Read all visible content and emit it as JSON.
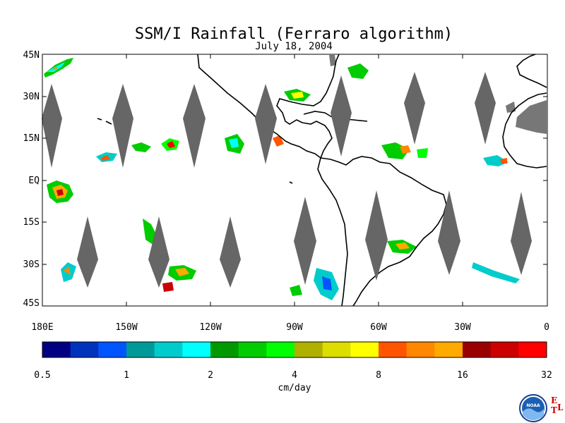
{
  "title": "SSM/I Rainfall (Ferraro algorithm)",
  "subtitle": "July 18, 2004",
  "lat_labels": [
    "45N",
    "30N",
    "15N",
    "EQ",
    "15S",
    "30S",
    "45S"
  ],
  "lon_labels": [
    "180E",
    "150W",
    "120W",
    "90W",
    "60W",
    "30W",
    "0"
  ],
  "colorbar": {
    "unit": "cm/day",
    "tick_labels": [
      "0.5",
      "1",
      "2",
      "4",
      "8",
      "16",
      "32"
    ],
    "colors": [
      "#000080",
      "#0033bb",
      "#0055ff",
      "#009999",
      "#00cccc",
      "#00ffff",
      "#009900",
      "#00cc00",
      "#00ff00",
      "#b0b000",
      "#dddd00",
      "#ffff00",
      "#ff5500",
      "#ff8800",
      "#ffaa00",
      "#990000",
      "#cc0000",
      "#ff0000"
    ]
  },
  "logo": {
    "text": "NOAA",
    "mark": "ETL"
  },
  "map_colors": {
    "coast": "#000000",
    "gap": "#666666",
    "land_grey": "#777777"
  }
}
